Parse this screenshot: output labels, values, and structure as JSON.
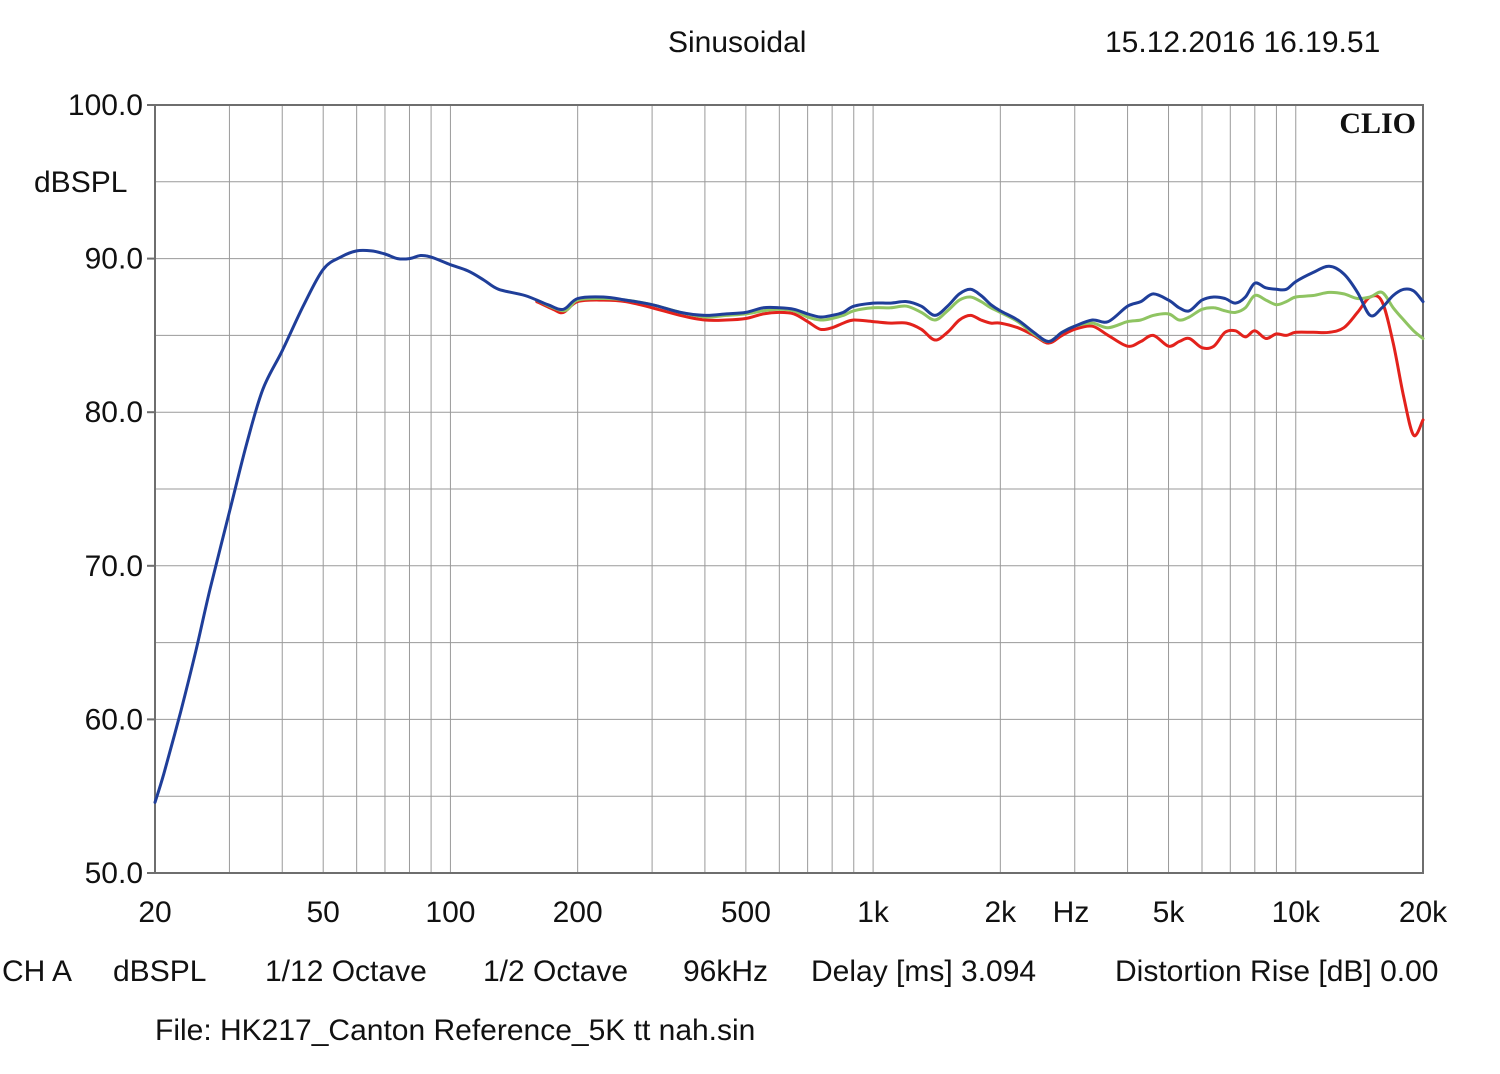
{
  "header": {
    "mode": "Sinusoidal",
    "timestamp": "15.12.2016 16.19.51"
  },
  "brand": "CLIO",
  "footer": {
    "channel": "CH A",
    "unit": "dBSPL",
    "smoothing": "1/12 Octave",
    "window": "1/2 Octave",
    "samplerate": "96kHz",
    "delay": "Delay [ms] 3.094",
    "distortion": "Distortion Rise [dB] 0.00",
    "file": "File: HK217_Canton Reference_5K tt nah.sin"
  },
  "chart_data": {
    "type": "line",
    "title": "",
    "xlabel": "Hz",
    "ylabel": "dBSPL",
    "x_scale": "log",
    "xlim": [
      20,
      20000
    ],
    "ylim": [
      50,
      100
    ],
    "grid": true,
    "x_ticks": [
      20,
      50,
      100,
      200,
      500,
      1000,
      2000,
      5000,
      10000,
      20000
    ],
    "x_tick_labels": [
      "20",
      "50",
      "100",
      "200",
      "500",
      "1k",
      "2k",
      "5k",
      "10k",
      "20k"
    ],
    "y_ticks": [
      50,
      60,
      70,
      80,
      90,
      100
    ],
    "y_tick_labels": [
      "50.0",
      "60.0",
      "70.0",
      "80.0",
      "90.0",
      "100.0"
    ],
    "series": [
      {
        "color": "#1f3e99",
        "points": [
          [
            20,
            54.6
          ],
          [
            21,
            56.5
          ],
          [
            23,
            60.5
          ],
          [
            25,
            64.5
          ],
          [
            27,
            68.5
          ],
          [
            30,
            73.5
          ],
          [
            33,
            78
          ],
          [
            36,
            81.5
          ],
          [
            40,
            84
          ],
          [
            45,
            87
          ],
          [
            50,
            89.3
          ],
          [
            55,
            90.1
          ],
          [
            60,
            90.5
          ],
          [
            65,
            90.5
          ],
          [
            70,
            90.3
          ],
          [
            75,
            90
          ],
          [
            80,
            90
          ],
          [
            85,
            90.2
          ],
          [
            90,
            90.1
          ],
          [
            100,
            89.6
          ],
          [
            110,
            89.2
          ],
          [
            120,
            88.6
          ],
          [
            130,
            88
          ],
          [
            150,
            87.6
          ],
          [
            170,
            87
          ],
          [
            185,
            86.7
          ],
          [
            200,
            87.4
          ],
          [
            230,
            87.5
          ],
          [
            260,
            87.3
          ],
          [
            300,
            87
          ],
          [
            350,
            86.5
          ],
          [
            400,
            86.3
          ],
          [
            450,
            86.4
          ],
          [
            500,
            86.5
          ],
          [
            550,
            86.8
          ],
          [
            600,
            86.8
          ],
          [
            650,
            86.7
          ],
          [
            700,
            86.4
          ],
          [
            750,
            86.2
          ],
          [
            800,
            86.3
          ],
          [
            850,
            86.5
          ],
          [
            900,
            86.9
          ],
          [
            1000,
            87.1
          ],
          [
            1100,
            87.1
          ],
          [
            1200,
            87.2
          ],
          [
            1300,
            86.9
          ],
          [
            1400,
            86.3
          ],
          [
            1500,
            86.9
          ],
          [
            1600,
            87.7
          ],
          [
            1700,
            88
          ],
          [
            1800,
            87.6
          ],
          [
            1900,
            87
          ],
          [
            2000,
            86.6
          ],
          [
            2200,
            86
          ],
          [
            2400,
            85.2
          ],
          [
            2600,
            84.6
          ],
          [
            2800,
            85.2
          ],
          [
            3000,
            85.6
          ],
          [
            3300,
            86
          ],
          [
            3600,
            85.9
          ],
          [
            4000,
            86.9
          ],
          [
            4300,
            87.2
          ],
          [
            4600,
            87.7
          ],
          [
            5000,
            87.3
          ],
          [
            5300,
            86.8
          ],
          [
            5600,
            86.6
          ],
          [
            6000,
            87.3
          ],
          [
            6400,
            87.5
          ],
          [
            6800,
            87.4
          ],
          [
            7200,
            87.1
          ],
          [
            7600,
            87.5
          ],
          [
            8000,
            88.4
          ],
          [
            8500,
            88.1
          ],
          [
            9000,
            88
          ],
          [
            9500,
            88
          ],
          [
            10000,
            88.5
          ],
          [
            11000,
            89.1
          ],
          [
            12000,
            89.5
          ],
          [
            13000,
            89
          ],
          [
            14000,
            87.8
          ],
          [
            15000,
            86.3
          ],
          [
            16000,
            86.8
          ],
          [
            17000,
            87.6
          ],
          [
            18000,
            88
          ],
          [
            19000,
            87.9
          ],
          [
            20000,
            87.2
          ]
        ]
      },
      {
        "color": "#8fc462",
        "points": [
          [
            160,
            87.3
          ],
          [
            185,
            86.6
          ],
          [
            200,
            87.3
          ],
          [
            230,
            87.4
          ],
          [
            260,
            87.3
          ],
          [
            300,
            87
          ],
          [
            350,
            86.5
          ],
          [
            400,
            86.2
          ],
          [
            450,
            86.3
          ],
          [
            500,
            86.4
          ],
          [
            550,
            86.6
          ],
          [
            600,
            86.7
          ],
          [
            650,
            86.6
          ],
          [
            700,
            86.2
          ],
          [
            750,
            86
          ],
          [
            800,
            86.1
          ],
          [
            850,
            86.3
          ],
          [
            900,
            86.6
          ],
          [
            1000,
            86.8
          ],
          [
            1100,
            86.8
          ],
          [
            1200,
            86.9
          ],
          [
            1300,
            86.5
          ],
          [
            1400,
            86
          ],
          [
            1500,
            86.6
          ],
          [
            1600,
            87.3
          ],
          [
            1700,
            87.5
          ],
          [
            1800,
            87.2
          ],
          [
            1900,
            86.8
          ],
          [
            2000,
            86.5
          ],
          [
            2200,
            85.9
          ],
          [
            2400,
            85.1
          ],
          [
            2600,
            84.6
          ],
          [
            2800,
            85.2
          ],
          [
            3000,
            85.6
          ],
          [
            3300,
            85.8
          ],
          [
            3600,
            85.5
          ],
          [
            4000,
            85.9
          ],
          [
            4300,
            86
          ],
          [
            4600,
            86.3
          ],
          [
            5000,
            86.4
          ],
          [
            5300,
            86
          ],
          [
            5600,
            86.2
          ],
          [
            6000,
            86.7
          ],
          [
            6400,
            86.8
          ],
          [
            6800,
            86.6
          ],
          [
            7200,
            86.5
          ],
          [
            7600,
            86.8
          ],
          [
            8000,
            87.6
          ],
          [
            8500,
            87.3
          ],
          [
            9000,
            87
          ],
          [
            9500,
            87.2
          ],
          [
            10000,
            87.5
          ],
          [
            11000,
            87.6
          ],
          [
            12000,
            87.8
          ],
          [
            13000,
            87.7
          ],
          [
            14000,
            87.4
          ],
          [
            15000,
            87.5
          ],
          [
            16000,
            87.8
          ],
          [
            17000,
            86.8
          ],
          [
            18000,
            86
          ],
          [
            19000,
            85.3
          ],
          [
            20000,
            84.8
          ]
        ]
      },
      {
        "color": "#e3221c",
        "points": [
          [
            160,
            87.2
          ],
          [
            175,
            86.7
          ],
          [
            185,
            86.5
          ],
          [
            200,
            87.2
          ],
          [
            230,
            87.3
          ],
          [
            260,
            87.2
          ],
          [
            300,
            86.8
          ],
          [
            350,
            86.3
          ],
          [
            400,
            86
          ],
          [
            450,
            86
          ],
          [
            500,
            86.1
          ],
          [
            550,
            86.4
          ],
          [
            600,
            86.5
          ],
          [
            650,
            86.4
          ],
          [
            700,
            85.9
          ],
          [
            750,
            85.4
          ],
          [
            800,
            85.5
          ],
          [
            850,
            85.8
          ],
          [
            900,
            86
          ],
          [
            1000,
            85.9
          ],
          [
            1100,
            85.8
          ],
          [
            1200,
            85.8
          ],
          [
            1300,
            85.4
          ],
          [
            1400,
            84.7
          ],
          [
            1500,
            85.2
          ],
          [
            1600,
            86
          ],
          [
            1700,
            86.3
          ],
          [
            1800,
            86
          ],
          [
            1900,
            85.8
          ],
          [
            2000,
            85.8
          ],
          [
            2200,
            85.5
          ],
          [
            2400,
            85
          ],
          [
            2600,
            84.5
          ],
          [
            2800,
            85
          ],
          [
            3000,
            85.4
          ],
          [
            3300,
            85.6
          ],
          [
            3600,
            85
          ],
          [
            4000,
            84.3
          ],
          [
            4300,
            84.6
          ],
          [
            4600,
            85
          ],
          [
            5000,
            84.3
          ],
          [
            5300,
            84.6
          ],
          [
            5600,
            84.8
          ],
          [
            6000,
            84.2
          ],
          [
            6400,
            84.3
          ],
          [
            6800,
            85.2
          ],
          [
            7200,
            85.3
          ],
          [
            7600,
            84.9
          ],
          [
            8000,
            85.3
          ],
          [
            8500,
            84.8
          ],
          [
            9000,
            85.1
          ],
          [
            9500,
            85
          ],
          [
            10000,
            85.2
          ],
          [
            11000,
            85.2
          ],
          [
            12000,
            85.2
          ],
          [
            13000,
            85.5
          ],
          [
            14000,
            86.5
          ],
          [
            15000,
            87.5
          ],
          [
            16000,
            87.2
          ],
          [
            17000,
            84.5
          ],
          [
            18000,
            81
          ],
          [
            19000,
            78.5
          ],
          [
            20000,
            79.5
          ]
        ]
      }
    ]
  }
}
